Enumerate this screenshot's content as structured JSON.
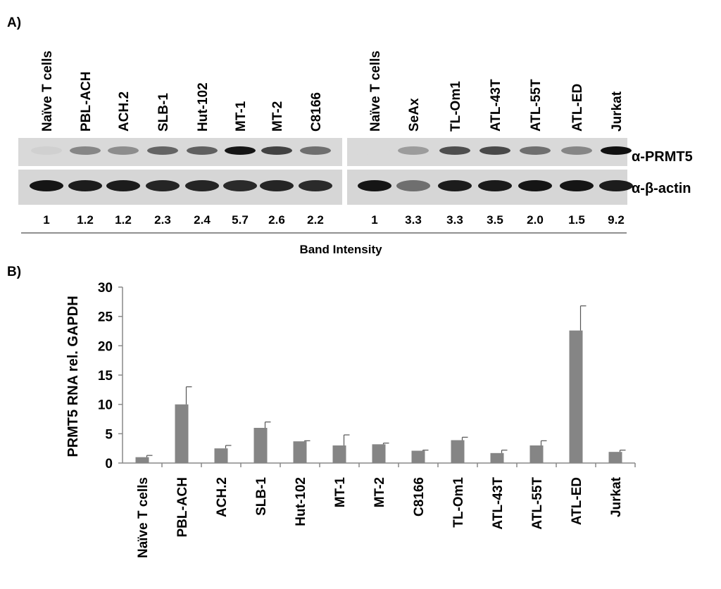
{
  "panel_a": {
    "label": "A)",
    "lane_groups": [
      [
        "Naïve T cells",
        "PBL-ACH",
        "ACH.2",
        "SLB-1",
        "Hut-102",
        "MT-1",
        "MT-2",
        "C8166"
      ],
      [
        "Naïve T cells",
        "SeAx",
        "TL-Om1",
        "ATL-43T",
        "ATL-55T",
        "ATL-ED",
        "Jurkat"
      ]
    ],
    "blot_labels": [
      "α-PRMT5",
      "α-β-actin"
    ],
    "band_intensity_label": "Band Intensity",
    "band_intensities": [
      [
        "1",
        "1.2",
        "1.2",
        "2.3",
        "2.4",
        "5.7",
        "2.6",
        "2.2"
      ],
      [
        "1",
        "3.3",
        "3.3",
        "3.5",
        "2.0",
        "1.5",
        "9.2"
      ]
    ],
    "prmt5_band_darkness": [
      [
        0.12,
        0.45,
        0.42,
        0.6,
        0.62,
        0.95,
        0.75,
        0.55
      ],
      [
        0.08,
        0.35,
        0.7,
        0.72,
        0.55,
        0.45,
        0.97
      ]
    ],
    "actin_band_darkness": [
      [
        0.95,
        0.92,
        0.92,
        0.88,
        0.88,
        0.86,
        0.88,
        0.86
      ],
      [
        0.95,
        0.55,
        0.92,
        0.93,
        0.95,
        0.95,
        0.92
      ]
    ]
  },
  "panel_b": {
    "label": "B)"
  },
  "chart_data": {
    "type": "bar",
    "title": "",
    "xlabel": "",
    "ylabel": "PRMT5 RNA rel. GAPDH",
    "categories": [
      "Naïve T cells",
      "PBL-ACH",
      "ACH.2",
      "SLB-1",
      "Hut-102",
      "MT-1",
      "MT-2",
      "C8166",
      "TL-Om1",
      "ATL-43T",
      "ATL-55T",
      "ATL-ED",
      "Jurkat"
    ],
    "values": [
      1.0,
      10.0,
      2.5,
      6.0,
      3.7,
      3.0,
      3.2,
      2.1,
      3.9,
      1.7,
      3.0,
      22.6,
      1.9
    ],
    "errors": [
      0.3,
      3.0,
      0.5,
      1.0,
      0.1,
      1.8,
      0.2,
      0.1,
      0.5,
      0.5,
      0.8,
      4.2,
      0.3
    ],
    "ylim": [
      0,
      30
    ],
    "yticks": [
      "0",
      "5",
      "10",
      "15",
      "20",
      "25",
      "30"
    ],
    "bar_color": "#858585",
    "grid": false,
    "legend": "none"
  }
}
